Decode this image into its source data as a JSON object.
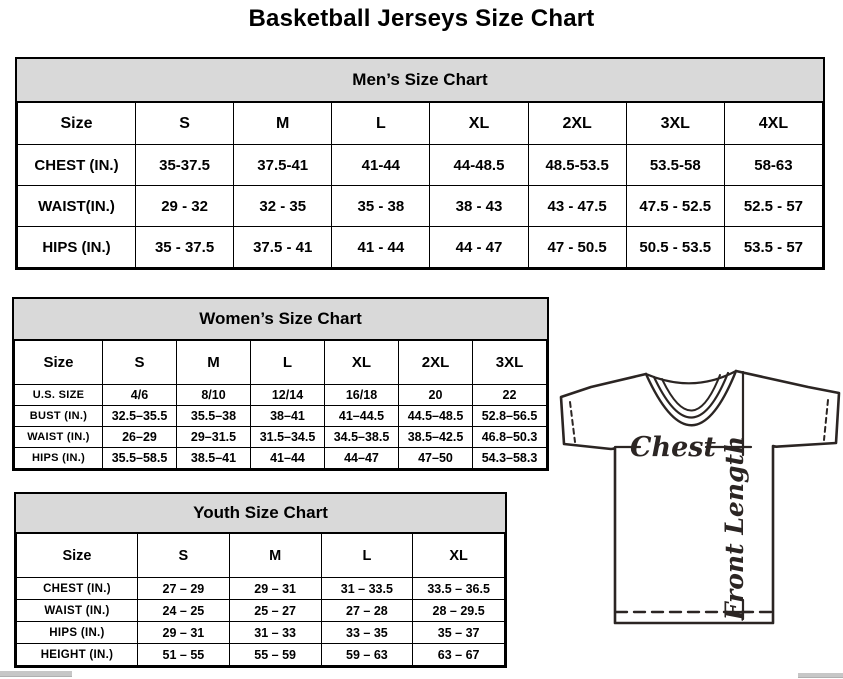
{
  "page": {
    "title": "Basketball Jerseys Size Chart"
  },
  "men": {
    "title": "Men’s Size Chart",
    "columns": [
      "Size",
      "S",
      "M",
      "L",
      "XL",
      "2XL",
      "3XL",
      "4XL"
    ],
    "rows": [
      {
        "label": "CHEST (IN.)",
        "values": [
          "35-37.5",
          "37.5-41",
          "41-44",
          "44-48.5",
          "48.5-53.5",
          "53.5-58",
          "58-63"
        ]
      },
      {
        "label": "WAIST(IN.)",
        "values": [
          "29 - 32",
          "32 - 35",
          "35 - 38",
          "38 - 43",
          "43 - 47.5",
          "47.5 - 52.5",
          "52.5 - 57"
        ]
      },
      {
        "label": "HIPS (IN.)",
        "values": [
          "35 - 37.5",
          "37.5 - 41",
          "41 - 44",
          "44 - 47",
          "47 - 50.5",
          "50.5 - 53.5",
          "53.5 - 57"
        ]
      }
    ]
  },
  "women": {
    "title": "Women’s Size Chart",
    "columns": [
      "Size",
      "S",
      "M",
      "L",
      "XL",
      "2XL",
      "3XL"
    ],
    "rows": [
      {
        "label": "U.S. SIZE",
        "values": [
          "4/6",
          "8/10",
          "12/14",
          "16/18",
          "20",
          "22"
        ]
      },
      {
        "label": "BUST (IN.)",
        "values": [
          "32.5–35.5",
          "35.5–38",
          "38–41",
          "41–44.5",
          "44.5–48.5",
          "52.8–56.5"
        ]
      },
      {
        "label": "WAIST (IN.)",
        "values": [
          "26–29",
          "29–31.5",
          "31.5–34.5",
          "34.5–38.5",
          "38.5–42.5",
          "46.8–50.3"
        ]
      },
      {
        "label": "HIPS (IN.)",
        "values": [
          "35.5–58.5",
          "38.5–41",
          "41–44",
          "44–47",
          "47–50",
          "54.3–58.3"
        ]
      }
    ]
  },
  "youth": {
    "title": "Youth Size Chart",
    "columns": [
      "Size",
      "S",
      "M",
      "L",
      "XL"
    ],
    "rows": [
      {
        "label": "CHEST (IN.)",
        "values": [
          "27 – 29",
          "29 – 31",
          "31 – 33.5",
          "33.5 – 36.5"
        ]
      },
      {
        "label": "WAIST (IN.)",
        "values": [
          "24 – 25",
          "25 – 27",
          "27 – 28",
          "28 – 29.5"
        ]
      },
      {
        "label": "HIPS (IN.)",
        "values": [
          "29 – 31",
          "31 – 33",
          "33 – 35",
          "35 – 37"
        ]
      },
      {
        "label": "HEIGHT (IN.)",
        "values": [
          "51 – 55",
          "55 – 59",
          "59 – 63",
          "63 – 67"
        ]
      }
    ]
  },
  "diagram": {
    "chest_label": "Chest",
    "front_length_label": "Front Length",
    "line_color": "#2b2523"
  },
  "colors": {
    "table_header_bg": "#d9d9d9",
    "border": "#000000",
    "text": "#000000"
  }
}
